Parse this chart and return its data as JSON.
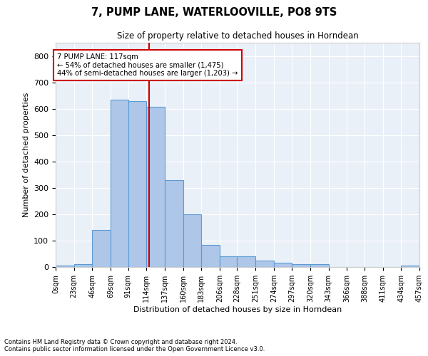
{
  "title1": "7, PUMP LANE, WATERLOOVILLE, PO8 9TS",
  "title2": "Size of property relative to detached houses in Horndean",
  "xlabel": "Distribution of detached houses by size in Horndean",
  "ylabel": "Number of detached properties",
  "footnote1": "Contains HM Land Registry data © Crown copyright and database right 2024.",
  "footnote2": "Contains public sector information licensed under the Open Government Licence v3.0.",
  "annotation_line1": "7 PUMP LANE: 117sqm",
  "annotation_line2": "← 54% of detached houses are smaller (1,475)",
  "annotation_line3": "44% of semi-detached houses are larger (1,203) →",
  "property_size": 117,
  "bin_edges": [
    0,
    23,
    46,
    69,
    91,
    114,
    137,
    160,
    183,
    206,
    228,
    251,
    274,
    297,
    320,
    343,
    366,
    388,
    411,
    434,
    457
  ],
  "bar_heights": [
    5,
    10,
    140,
    635,
    630,
    608,
    330,
    200,
    85,
    40,
    40,
    25,
    15,
    12,
    10,
    0,
    0,
    0,
    0,
    5
  ],
  "bar_color": "#aec6e8",
  "bar_edge_color": "#5b9bd5",
  "vline_color": "#cc0000",
  "vline_x": 117,
  "bg_color": "#eaf0f8",
  "annotation_box_color": "#cc0000",
  "ylim": [
    0,
    850
  ],
  "yticks": [
    0,
    100,
    200,
    300,
    400,
    500,
    600,
    700,
    800
  ],
  "tick_labels": [
    "0sqm",
    "23sqm",
    "46sqm",
    "69sqm",
    "91sqm",
    "114sqm",
    "137sqm",
    "160sqm",
    "183sqm",
    "206sqm",
    "228sqm",
    "251sqm",
    "274sqm",
    "297sqm",
    "320sqm",
    "343sqm",
    "366sqm",
    "388sqm",
    "411sqm",
    "434sqm",
    "457sqm"
  ]
}
